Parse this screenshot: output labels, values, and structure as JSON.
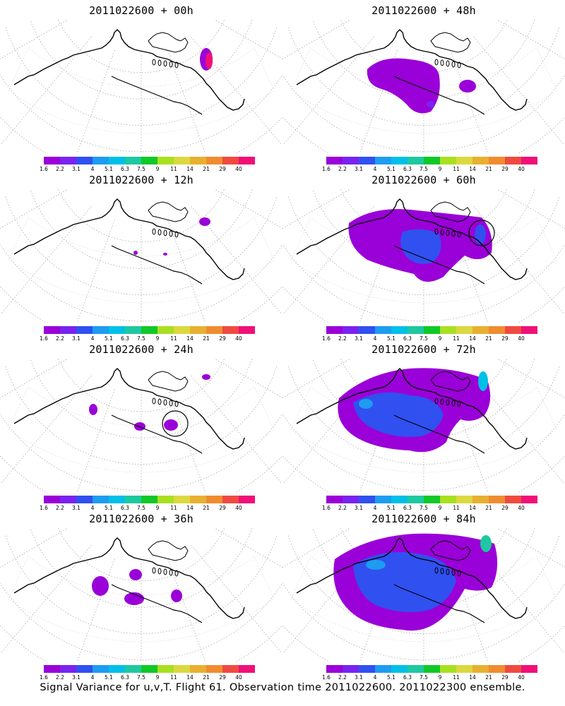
{
  "panels": [
    {
      "title": "2011022600 + 00h",
      "lead": "00h",
      "intensity": 0,
      "circle": false
    },
    {
      "title": "2011022600 + 48h",
      "lead": "48h",
      "intensity": 3,
      "circle": false
    },
    {
      "title": "2011022600 + 12h",
      "lead": "12h",
      "intensity": 1,
      "circle": false
    },
    {
      "title": "2011022600 + 60h",
      "lead": "60h",
      "intensity": 4,
      "circle": true
    },
    {
      "title": "2011022600 + 24h",
      "lead": "24h",
      "intensity": 1,
      "circle": true
    },
    {
      "title": "2011022600 + 72h",
      "lead": "72h",
      "intensity": 5,
      "circle": false
    },
    {
      "title": "2011022600 + 36h",
      "lead": "36h",
      "intensity": 2,
      "circle": false
    },
    {
      "title": "2011022600 + 84h",
      "lead": "84h",
      "intensity": 6,
      "circle": false
    }
  ],
  "colorbar": {
    "colors": [
      "#9a00d8",
      "#7a22f0",
      "#3050f0",
      "#1e9cf0",
      "#00c0e8",
      "#1ec8a0",
      "#10c828",
      "#a8e020",
      "#dcd840",
      "#e8b030",
      "#f08c30",
      "#f04a40",
      "#f01078"
    ],
    "labels": [
      "1.6",
      "2.2",
      "3.1",
      "4",
      "5.1",
      "6.3",
      "7.5",
      "9",
      "11",
      "14",
      "21",
      "29",
      "40"
    ]
  },
  "caption": "Signal Variance for u,v,T. Flight 61. Observation time 2011022600. 2011022300 ensemble."
}
